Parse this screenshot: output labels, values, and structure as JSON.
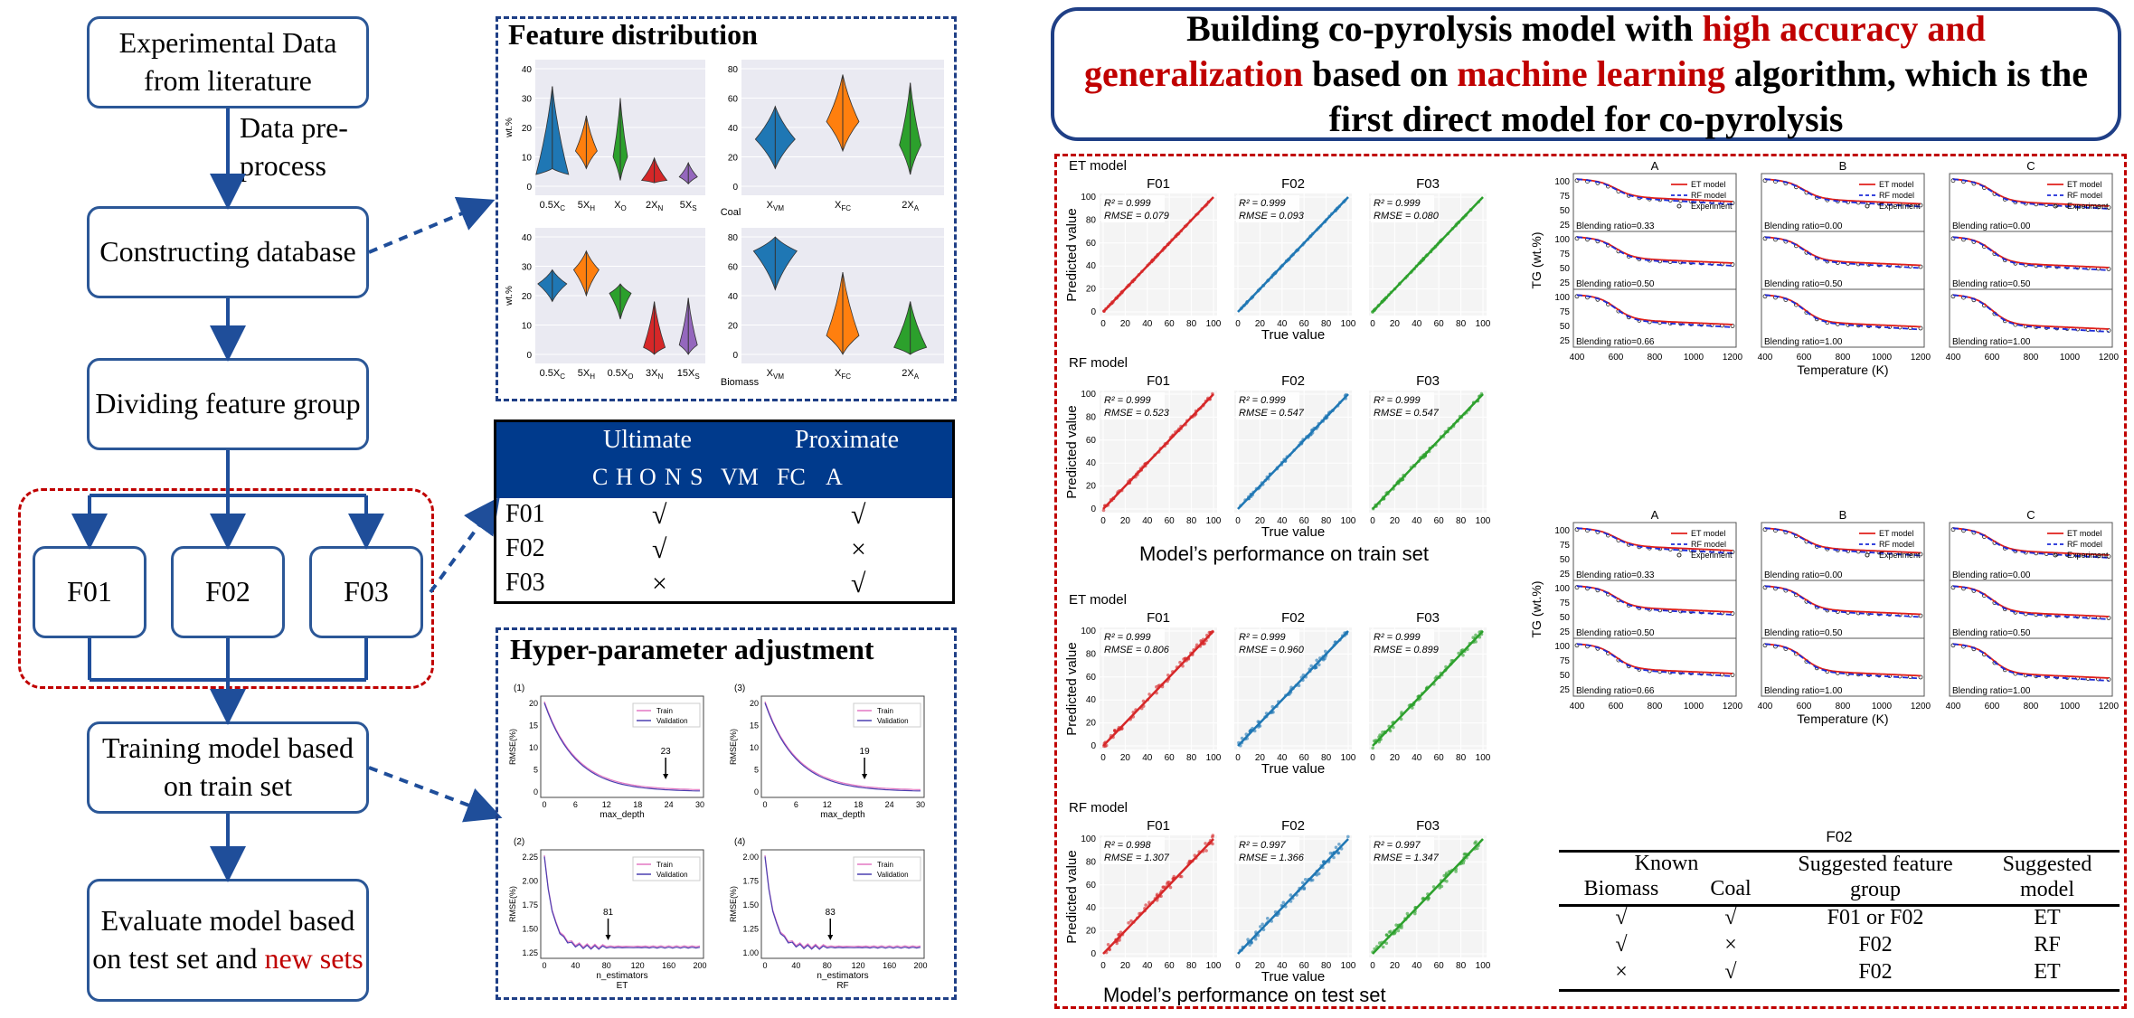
{
  "flow": {
    "step1": "Experimental Data from literature",
    "preprocess": "Data pre-process",
    "step2": "Constructing database",
    "step3": "Dividing feature group",
    "g1": "F01",
    "g2": "F02",
    "g3": "F03",
    "step4": "Training model based on train set",
    "step5_a": "Evaluate model based on test set and ",
    "step5_b": "new sets"
  },
  "feature_dist": {
    "title": "Feature distribution",
    "coal_label": "Coal",
    "biomass_label": "Biomass",
    "ylabel": "wt.%",
    "coal_ult_ticks": [
      "0.5X",
      "5X",
      "X",
      "2X",
      "5X"
    ],
    "coal_ult_subs": [
      "C",
      "H",
      "O",
      "N",
      "S"
    ],
    "coal_prox_ticks": [
      "X",
      "X",
      "2X"
    ],
    "coal_prox_subs": [
      "VM",
      "FC",
      "A"
    ],
    "bio_ult_ticks": [
      "0.5X",
      "5X",
      "0.5X",
      "3X",
      "15X"
    ],
    "bio_ult_subs": [
      "C",
      "H",
      "O",
      "N",
      "S"
    ],
    "bio_prox_ticks": [
      "X",
      "X",
      "2X"
    ],
    "bio_prox_subs": [
      "VM",
      "FC",
      "A"
    ],
    "yticks_left": [
      "0",
      "10",
      "20",
      "30",
      "40"
    ],
    "yticks_right": [
      "0",
      "20",
      "40",
      "60",
      "80"
    ]
  },
  "feature_table": {
    "group1": "Ultimate",
    "group2": "Proximate",
    "cols": [
      "C",
      "H",
      "O",
      "N",
      "S",
      "VM",
      "FC",
      "A"
    ],
    "rows": [
      {
        "name": "F01",
        "ult": "√",
        "prox": "√"
      },
      {
        "name": "F02",
        "ult": "√",
        "prox": "×"
      },
      {
        "name": "F03",
        "ult": "×",
        "prox": "√"
      }
    ]
  },
  "hyper": {
    "title": "Hyper-parameter adjustment",
    "legend_train": "Train",
    "legend_val": "Validation",
    "ylabel": "RMSE(%)",
    "plots": [
      {
        "id": "(1)",
        "xlabel": "max_depth",
        "annot": "23",
        "xticks": [
          "0",
          "6",
          "12",
          "18",
          "24",
          "30"
        ],
        "yticks": [
          "0",
          "5",
          "10",
          "15",
          "20"
        ]
      },
      {
        "id": "(3)",
        "xlabel": "max_depth",
        "annot": "19",
        "xticks": [
          "0",
          "6",
          "12",
          "18",
          "24",
          "30"
        ],
        "yticks": [
          "0",
          "5",
          "10",
          "15",
          "20"
        ]
      },
      {
        "id": "(2)",
        "xlabel": "n_estimators",
        "sub": "ET",
        "annot": "81",
        "xticks": [
          "0",
          "40",
          "80",
          "120",
          "160",
          "200"
        ],
        "yticks": [
          "1.25",
          "1.50",
          "1.75",
          "2.00",
          "2.25"
        ]
      },
      {
        "id": "(4)",
        "xlabel": "n_estimators",
        "sub": "RF",
        "annot": "83",
        "xticks": [
          "0",
          "40",
          "80",
          "120",
          "160",
          "200"
        ],
        "yticks": [
          "1.00",
          "1.25",
          "1.50",
          "1.75",
          "2.00"
        ]
      }
    ]
  },
  "headline": {
    "p1": "Building co-pyrolysis model with ",
    "p2": "high accuracy and generalization",
    "p3": " based on ",
    "p4": "machine learning",
    "p5": " algorithm, which is the first direct model for co-pyrolysis"
  },
  "scatter": {
    "et_model": "ET model",
    "rf_model": "RF model",
    "ylabel": "Predicted value",
    "xlabel": "True value",
    "groups": [
      "F01",
      "F02",
      "F03"
    ],
    "colors": [
      "#d62728",
      "#1f77b4",
      "#2ca02c"
    ],
    "ticks": [
      "0",
      "20",
      "40",
      "60",
      "80",
      "100"
    ],
    "train_caption": "Model’s performance on train set",
    "test_caption": "Model’s performance on test set",
    "train_et": [
      {
        "r2": "R² = 0.999",
        "rmse": "RMSE = 0.079"
      },
      {
        "r2": "R² = 0.999",
        "rmse": "RMSE = 0.093"
      },
      {
        "r2": "R² = 0.999",
        "rmse": "RMSE = 0.080"
      }
    ],
    "train_rf": [
      {
        "r2": "R² = 0.999",
        "rmse": "RMSE = 0.523"
      },
      {
        "r2": "R² = 0.999",
        "rmse": "RMSE = 0.547"
      },
      {
        "r2": "R² = 0.999",
        "rmse": "RMSE = 0.547"
      }
    ],
    "test_et": [
      {
        "r2": "R² = 0.999",
        "rmse": "RMSE = 0.806"
      },
      {
        "r2": "R² = 0.999",
        "rmse": "RMSE = 0.960"
      },
      {
        "r2": "R² = 0.999",
        "rmse": "RMSE = 0.899"
      }
    ],
    "test_rf": [
      {
        "r2": "R² = 0.998",
        "rmse": "RMSE = 1.307"
      },
      {
        "r2": "R² = 0.997",
        "rmse": "RMSE = 1.366"
      },
      {
        "r2": "R² = 0.997",
        "rmse": "RMSE = 1.347"
      }
    ]
  },
  "tg": {
    "cols": [
      "A",
      "B",
      "C"
    ],
    "legend": [
      "ET model",
      "RF model",
      "Experiment"
    ],
    "ylabel": "TG (wt.%)",
    "xlabel": "Temperature (K)",
    "yticks": [
      "25",
      "50",
      "75",
      "100"
    ],
    "xticks": [
      "400",
      "600",
      "800",
      "1000",
      "1200"
    ],
    "ratios_top": [
      [
        "Blending ratio=0.33",
        "Blending ratio=0.00",
        "Blending ratio=0.00"
      ],
      [
        "Blending ratio=0.50",
        "Blending ratio=0.50",
        "Blending ratio=0.50"
      ],
      [
        "Blending ratio=0.66",
        "Blending ratio=1.00",
        "Blending ratio=1.00"
      ]
    ],
    "ratios_bottom": [
      [
        "Blending ratio=0.33",
        "Blending ratio=0.00",
        "Blending ratio=0.00"
      ],
      [
        "Blending ratio=0.50",
        "Blending ratio=0.50",
        "Blending ratio=0.50"
      ],
      [
        "Blending ratio=0.66",
        "Blending ratio=1.00",
        "Blending ratio=1.00"
      ]
    ]
  },
  "suggest": {
    "caption": "F02",
    "h_known": "Known",
    "h_biomass": "Biomass",
    "h_coal": "Coal",
    "h_group": "Suggested feature group",
    "h_model": "Suggested model",
    "rows": [
      {
        "biomass": "√",
        "coal": "√",
        "group": "F01 or F02",
        "model": "ET"
      },
      {
        "biomass": "√",
        "coal": "×",
        "group": "F02",
        "model": "RF"
      },
      {
        "biomass": "×",
        "coal": "√",
        "group": "F02",
        "model": "ET"
      }
    ]
  }
}
